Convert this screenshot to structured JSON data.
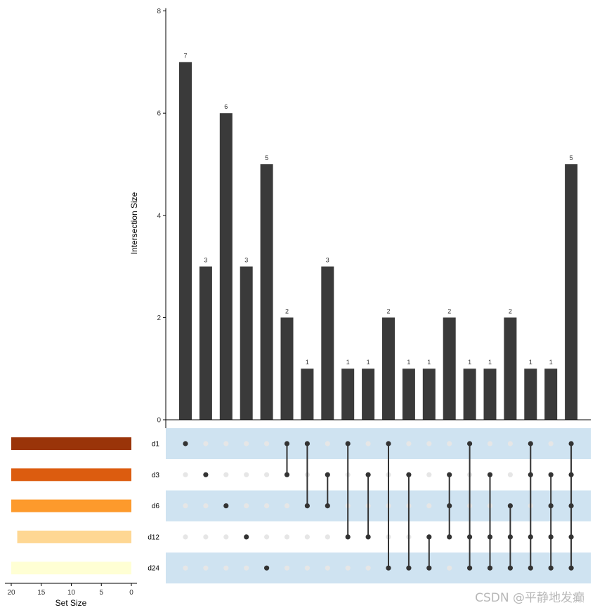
{
  "chart_data": {
    "type": "upset",
    "sets": [
      "d1",
      "d3",
      "d6",
      "d12",
      "d24"
    ],
    "set_sizes": [
      20,
      20,
      20,
      19,
      20
    ],
    "set_colors": [
      "#9a3409",
      "#dc5c0f",
      "#fd9a2c",
      "#fed793",
      "#ffffd4"
    ],
    "intersection_sizes": [
      7,
      3,
      6,
      3,
      5,
      2,
      1,
      3,
      1,
      1,
      2,
      1,
      1,
      2,
      1,
      1,
      2,
      1,
      1,
      5
    ],
    "intersections": [
      [
        "d1"
      ],
      [
        "d3"
      ],
      [
        "d6"
      ],
      [
        "d12"
      ],
      [
        "d24"
      ],
      [
        "d1",
        "d3"
      ],
      [
        "d1",
        "d6"
      ],
      [
        "d3",
        "d6"
      ],
      [
        "d1",
        "d12"
      ],
      [
        "d3",
        "d12"
      ],
      [
        "d1",
        "d24"
      ],
      [
        "d3",
        "d24"
      ],
      [
        "d12",
        "d24"
      ],
      [
        "d3",
        "d6",
        "d12"
      ],
      [
        "d1",
        "d12",
        "d24"
      ],
      [
        "d3",
        "d12",
        "d24"
      ],
      [
        "d6",
        "d12",
        "d24"
      ],
      [
        "d1",
        "d3",
        "d12",
        "d24"
      ],
      [
        "d3",
        "d6",
        "d12",
        "d24"
      ],
      [
        "d1",
        "d3",
        "d6",
        "d12",
        "d24"
      ]
    ],
    "ylabel": "Intersection Size",
    "y_ticks": [
      0,
      2,
      4,
      6,
      8
    ],
    "ylim": [
      0,
      8
    ],
    "set_size_label": "Set Size",
    "set_size_ticks": [
      20,
      15,
      10,
      5,
      0
    ],
    "bar_color": "#3a3a3a",
    "dot_active_color": "#333333",
    "dot_inactive_color": "#e6e6e6",
    "stripe_color": "#cfe3f1"
  },
  "watermark": "CSDN @平静地发癫"
}
